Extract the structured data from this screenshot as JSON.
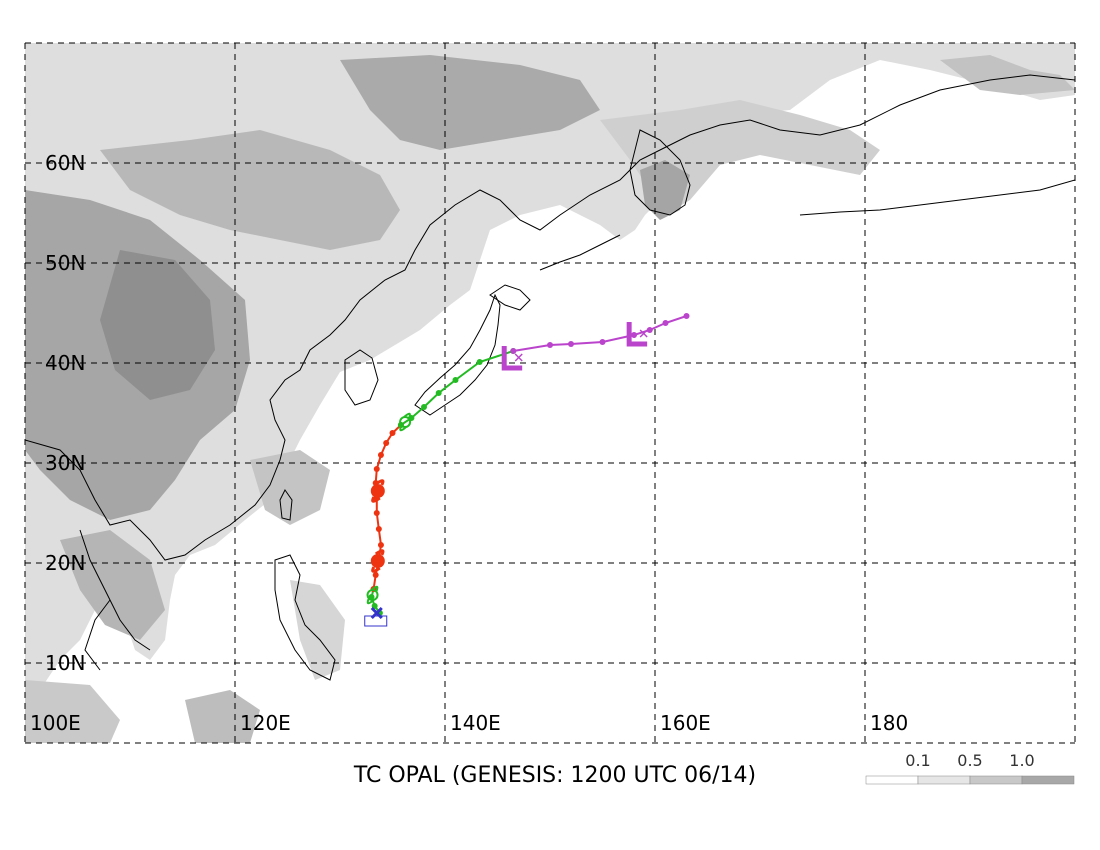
{
  "title": "TC OPAL (GENESIS: 1200 UTC 06/14)",
  "map": {
    "lon_range": [
      100,
      200
    ],
    "lat_range": [
      2,
      72
    ],
    "lon_ticks": [
      {
        "value": 100,
        "label": "100E"
      },
      {
        "value": 120,
        "label": "120E"
      },
      {
        "value": 140,
        "label": "140E"
      },
      {
        "value": 160,
        "label": "160E"
      },
      {
        "value": 180,
        "label": "180"
      }
    ],
    "lat_ticks": [
      {
        "value": 10,
        "label": "10N"
      },
      {
        "value": 20,
        "label": "20N"
      },
      {
        "value": 30,
        "label": "30N"
      },
      {
        "value": 40,
        "label": "40N"
      },
      {
        "value": 50,
        "label": "50N"
      },
      {
        "value": 60,
        "label": "60N"
      }
    ],
    "grid": true
  },
  "legend": {
    "labels": [
      "0.1",
      "0.5",
      "1.0"
    ],
    "colors": [
      "#ffffff",
      "#e6e6e6",
      "#c8c8c8",
      "#a8a8a8"
    ]
  },
  "track": {
    "segments": [
      {
        "stage": "tropical depression",
        "color": "#22bb22",
        "points": [
          [
            133.8,
            15.0
          ],
          [
            133.3,
            15.7
          ],
          [
            133.0,
            16.6
          ],
          [
            133.2,
            17.4
          ]
        ]
      },
      {
        "stage": "typhoon",
        "color": "#ee3311",
        "points": [
          [
            133.2,
            17.4
          ],
          [
            133.4,
            18.8
          ],
          [
            133.7,
            20.3
          ],
          [
            133.9,
            21.8
          ],
          [
            133.7,
            23.4
          ],
          [
            133.5,
            25.0
          ],
          [
            133.5,
            26.5
          ],
          [
            133.4,
            28.0
          ],
          [
            133.5,
            29.4
          ],
          [
            133.9,
            30.8
          ],
          [
            134.4,
            32.0
          ],
          [
            135.0,
            33.0
          ],
          [
            135.8,
            33.8
          ]
        ]
      },
      {
        "stage": "tropical storm",
        "color": "#22bb22",
        "points": [
          [
            135.8,
            33.8
          ],
          [
            136.8,
            34.5
          ],
          [
            138.0,
            35.6
          ],
          [
            139.4,
            37.0
          ],
          [
            141.0,
            38.3
          ],
          [
            143.3,
            40.1
          ],
          [
            146.5,
            41.2
          ]
        ]
      },
      {
        "stage": "extratropical",
        "color": "#bb44cc",
        "points": [
          [
            146.5,
            41.2
          ],
          [
            150.0,
            41.8
          ],
          [
            152.0,
            41.9
          ],
          [
            155.0,
            42.1
          ],
          [
            158.0,
            42.8
          ],
          [
            159.5,
            43.3
          ],
          [
            161.0,
            44.0
          ],
          [
            163.0,
            44.7
          ]
        ]
      }
    ],
    "genesis": {
      "lon": 133.5,
      "lat": 14.3,
      "color": "#3333cc"
    },
    "markers": [
      {
        "type": "typhoon",
        "lon": 133.6,
        "lat": 27.2,
        "color": "#ee3311"
      },
      {
        "type": "typhoon",
        "lon": 133.6,
        "lat": 20.2,
        "color": "#ee3311"
      },
      {
        "type": "storm",
        "lon": 133.1,
        "lat": 16.8,
        "color": "#22bb22"
      },
      {
        "type": "storm",
        "lon": 136.2,
        "lat": 34.1,
        "color": "#22bb22"
      },
      {
        "type": "L",
        "lon": 146.4,
        "lat": 40.3,
        "color": "#bb44cc"
      },
      {
        "type": "L",
        "lon": 158.3,
        "lat": 42.7,
        "color": "#bb44cc"
      }
    ]
  }
}
